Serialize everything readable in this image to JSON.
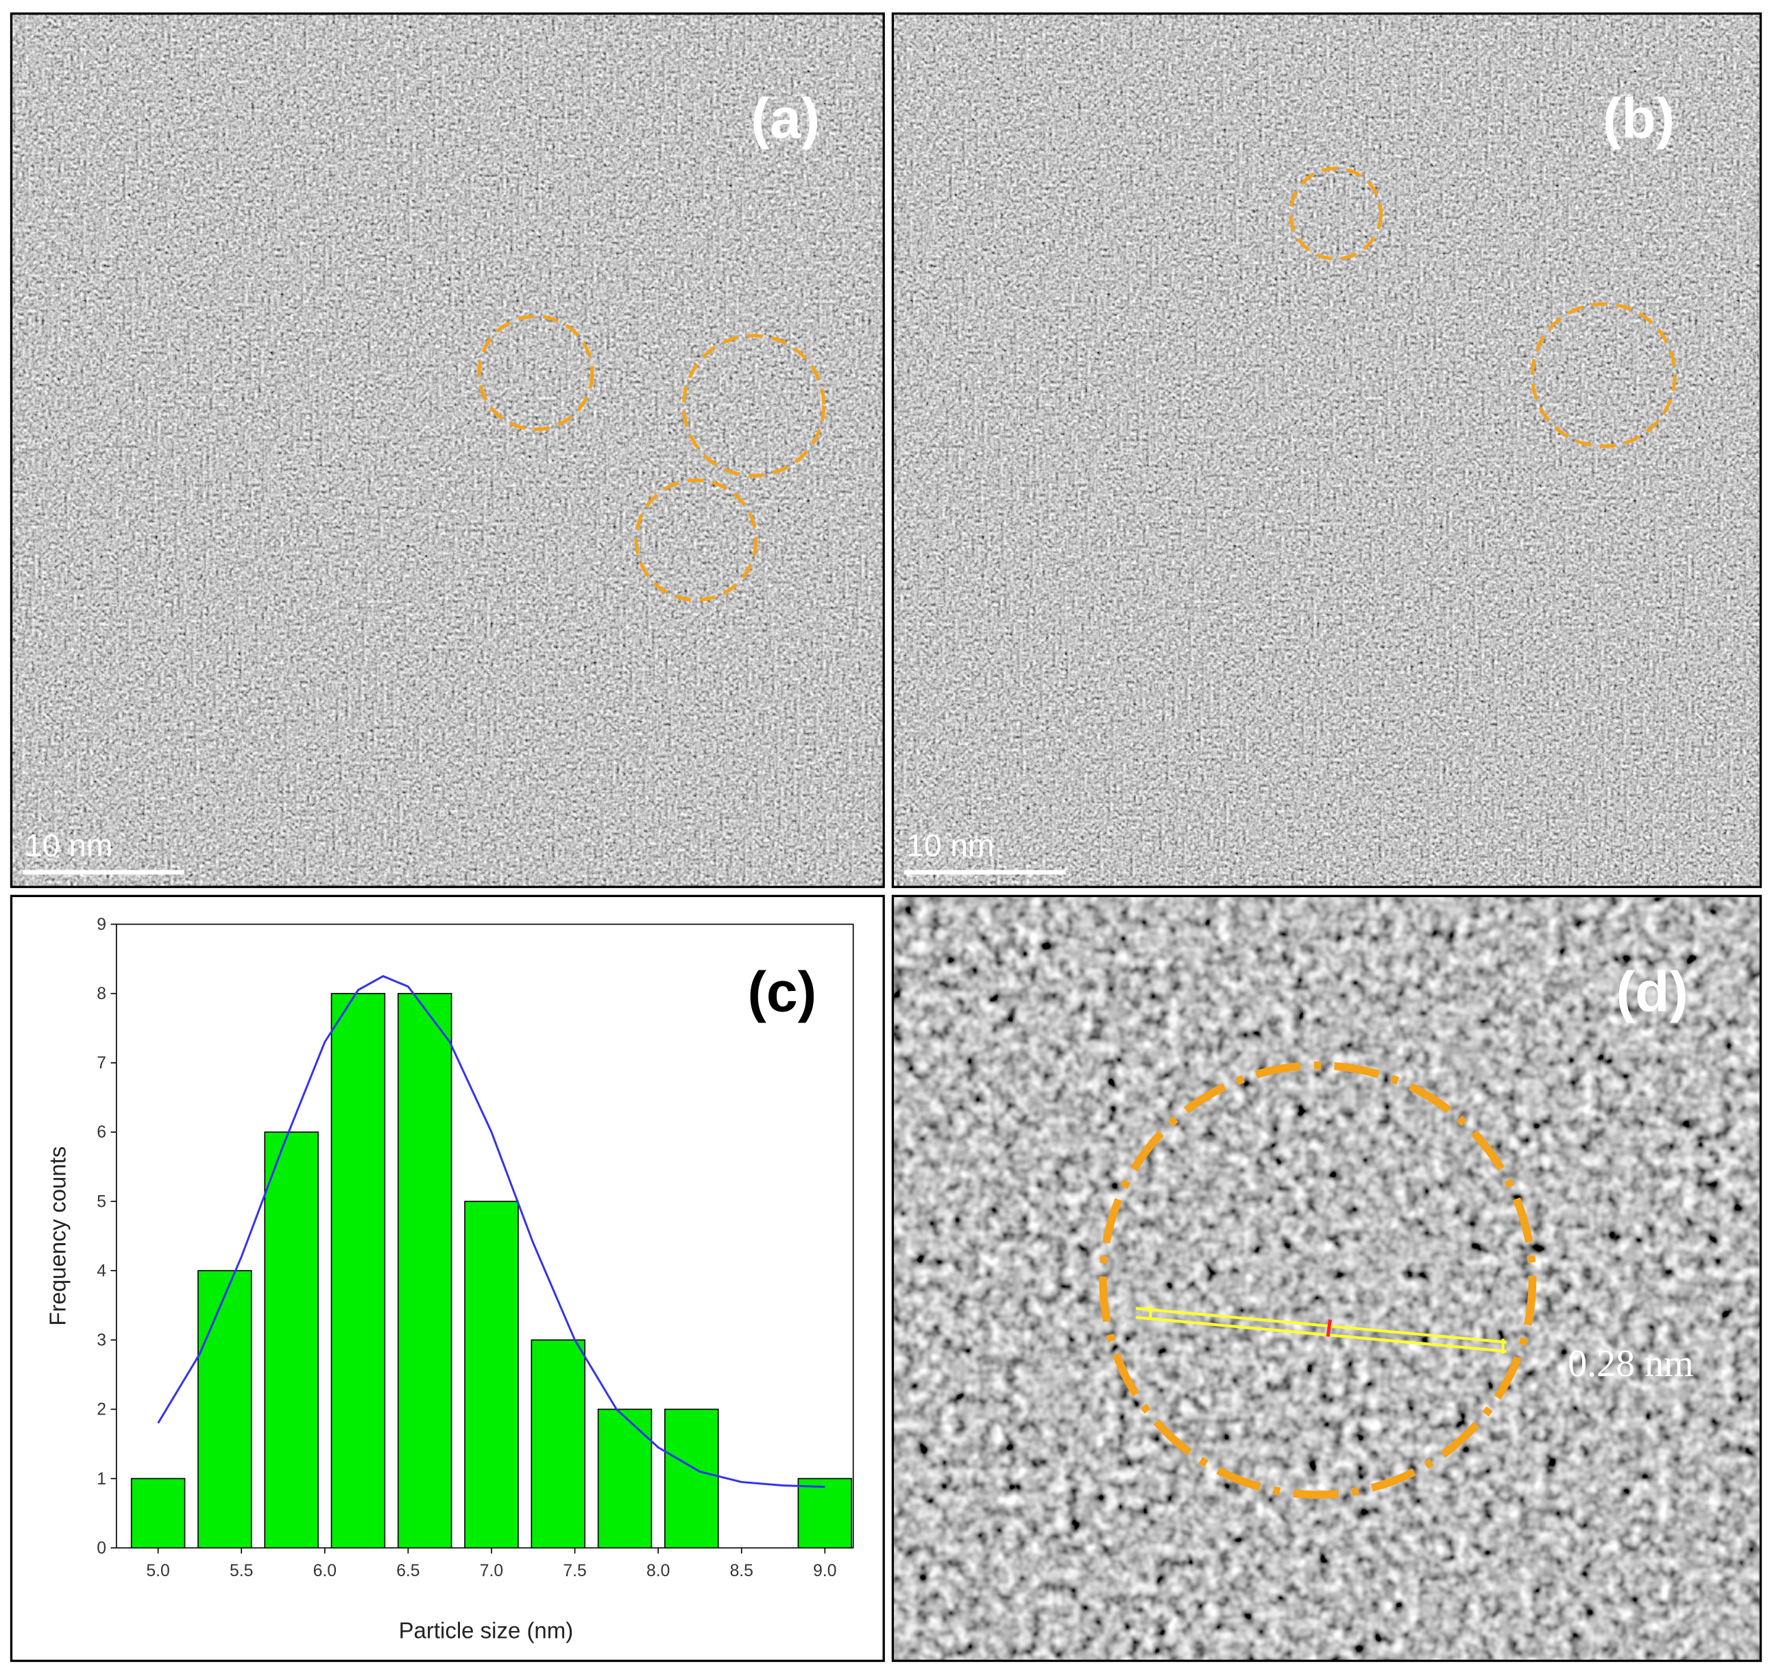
{
  "panels": [
    {
      "label": "(a)",
      "scale_bar": "10 nm"
    },
    {
      "label": "(b)",
      "scale_bar": "10 nm"
    },
    {
      "label": "(d)",
      "annotation": "0.28 nm"
    }
  ],
  "chart_data": {
    "type": "histogram",
    "annotation": "(c)",
    "x_label": "Particle size (nm)",
    "y_label": "Frequency counts",
    "bins": [
      4.8,
      5.2,
      5.6,
      6.0,
      6.4,
      6.8,
      7.2,
      7.6,
      8.0,
      8.4,
      8.8,
      9.2
    ],
    "values": [
      1,
      4,
      6,
      8,
      8,
      5,
      3,
      2,
      2,
      0,
      1
    ],
    "color": "#00ee00",
    "fit": {
      "color": "#3333ee",
      "x": [
        5.0,
        5.25,
        5.5,
        5.75,
        6.0,
        6.2,
        6.35,
        6.5,
        6.75,
        7.0,
        7.25,
        7.5,
        7.75,
        8.0,
        8.25,
        8.5,
        8.75,
        9.0
      ],
      "values": [
        1.8,
        2.8,
        4.2,
        5.8,
        7.3,
        8.05,
        8.25,
        8.1,
        7.3,
        6.0,
        4.4,
        3.0,
        2.0,
        1.45,
        1.1,
        0.95,
        0.9,
        0.88
      ]
    },
    "xlim": [
      4.75,
      9.17
    ],
    "ylim": [
      0,
      9
    ],
    "xticks": [
      {
        "value": 5,
        "label": "5.0"
      },
      5.5,
      {
        "value": 6,
        "label": "6.0"
      },
      6.5,
      {
        "value": 7,
        "label": "7.0"
      },
      7.5,
      {
        "value": 8,
        "label": "8.0"
      },
      8.5,
      {
        "value": 9,
        "label": "9.0"
      }
    ],
    "yticks": [
      0,
      1,
      2,
      3,
      4,
      5,
      6,
      7,
      8,
      9
    ]
  }
}
